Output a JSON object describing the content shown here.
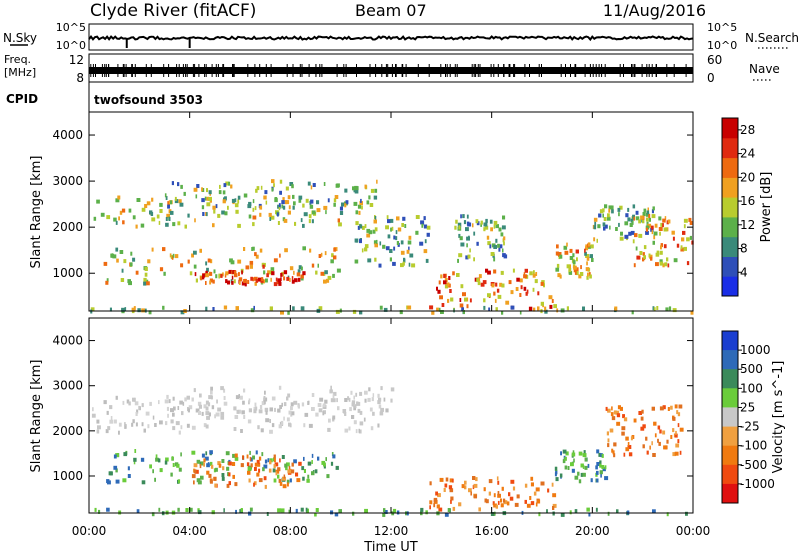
{
  "header": {
    "station": "Clyde River (fitACF)",
    "beam": "Beam 07",
    "date": "11/Aug/2016"
  },
  "nsky_panel": {
    "left_label": "N.Sky",
    "right_label": "N.Search",
    "left_ticks": [
      "10^5",
      "10^0"
    ],
    "right_ticks": [
      "10^5",
      "10^0"
    ]
  },
  "freq_panel": {
    "left_label_line1": "Freq.",
    "left_label_line2": "[MHz]",
    "right_label": "Nave",
    "left_ticks": [
      "12",
      "8"
    ],
    "right_ticks": [
      "60",
      "0"
    ]
  },
  "cpid": {
    "label": "CPID",
    "program": "twofsound 3503"
  },
  "time_axis": {
    "label": "Time UT",
    "ticks": [
      "00:00",
      "04:00",
      "08:00",
      "12:00",
      "16:00",
      "20:00",
      "00:00"
    ]
  },
  "chart_data": [
    {
      "type": "heatmap",
      "title": "",
      "xlabel": "Time UT",
      "ylabel": "Slant Range [km]",
      "xlim_hours": [
        0,
        24
      ],
      "ylim_km": [
        180,
        4500
      ],
      "y_ticks": [
        1000,
        2000,
        3000,
        4000
      ],
      "colorbar": {
        "label": "Power [dB]",
        "ticks": [
          4,
          8,
          12,
          16,
          20,
          24,
          28
        ],
        "range": [
          0,
          30
        ],
        "colors": [
          "#1a2ee6",
          "#2e4fb8",
          "#3a8a7a",
          "#5cb04a",
          "#b8cc2e",
          "#f0a020",
          "#ee6a10",
          "#e02a10",
          "#c80000"
        ]
      },
      "echo_regions": [
        {
          "t": [
            0.0,
            11.0
          ],
          "r": [
            2050,
            2700
          ],
          "level": 0.45
        },
        {
          "t": [
            3.0,
            11.5
          ],
          "r": [
            2450,
            3050
          ],
          "level": 0.35
        },
        {
          "t": [
            0.5,
            10.0
          ],
          "r": [
            800,
            1600
          ],
          "level": 0.55
        },
        {
          "t": [
            4.0,
            8.5
          ],
          "r": [
            800,
            1100
          ],
          "level": 0.85
        },
        {
          "t": [
            10.5,
            13.5
          ],
          "r": [
            1200,
            2300
          ],
          "level": 0.35
        },
        {
          "t": [
            13.5,
            18.5
          ],
          "r": [
            250,
            1100
          ],
          "level": 0.75
        },
        {
          "t": [
            14.5,
            16.5
          ],
          "r": [
            1300,
            2300
          ],
          "level": 0.3
        },
        {
          "t": [
            18.5,
            20.0
          ],
          "r": [
            900,
            1700
          ],
          "level": 0.55
        },
        {
          "t": [
            20.0,
            22.5
          ],
          "r": [
            1700,
            2500
          ],
          "level": 0.35
        },
        {
          "t": [
            21.5,
            24.0
          ],
          "r": [
            1200,
            2300
          ],
          "level": 0.65
        },
        {
          "t": [
            0.0,
            24.0
          ],
          "r": [
            180,
            300
          ],
          "level": 0.4
        }
      ]
    },
    {
      "type": "heatmap",
      "title": "",
      "xlabel": "Time UT",
      "ylabel": "Slant Range [km]",
      "xlim_hours": [
        0,
        24
      ],
      "ylim_km": [
        180,
        4500
      ],
      "y_ticks": [
        1000,
        2000,
        3000,
        4000
      ],
      "colorbar": {
        "label": "Velocity [m s^-1]",
        "ticks": [
          "1000",
          "500",
          "100",
          "25",
          "-25",
          "-100",
          "-500",
          "-1000"
        ],
        "colors": [
          "#1a3ed0",
          "#2e6ab8",
          "#3a8a5a",
          "#6acc3a",
          "#c8c8c8",
          "#f0a040",
          "#f07a10",
          "#f04a10",
          "#e01010"
        ]
      },
      "echo_regions": [
        {
          "t": [
            0.0,
            11.5
          ],
          "r": [
            2000,
            2800
          ],
          "class": "ground"
        },
        {
          "t": [
            3.0,
            12.0
          ],
          "r": [
            2400,
            3000
          ],
          "class": "ground"
        },
        {
          "t": [
            0.5,
            10.0
          ],
          "r": [
            900,
            1600
          ],
          "class": "toward"
        },
        {
          "t": [
            4.0,
            8.5
          ],
          "r": [
            800,
            1500
          ],
          "class": "away"
        },
        {
          "t": [
            13.5,
            18.5
          ],
          "r": [
            300,
            1000
          ],
          "class": "away"
        },
        {
          "t": [
            18.5,
            20.5
          ],
          "r": [
            900,
            1600
          ],
          "class": "toward"
        },
        {
          "t": [
            20.5,
            23.5
          ],
          "r": [
            1500,
            2600
          ],
          "class": "away"
        },
        {
          "t": [
            0.0,
            24.0
          ],
          "r": [
            180,
            300
          ],
          "class": "toward"
        }
      ]
    }
  ]
}
